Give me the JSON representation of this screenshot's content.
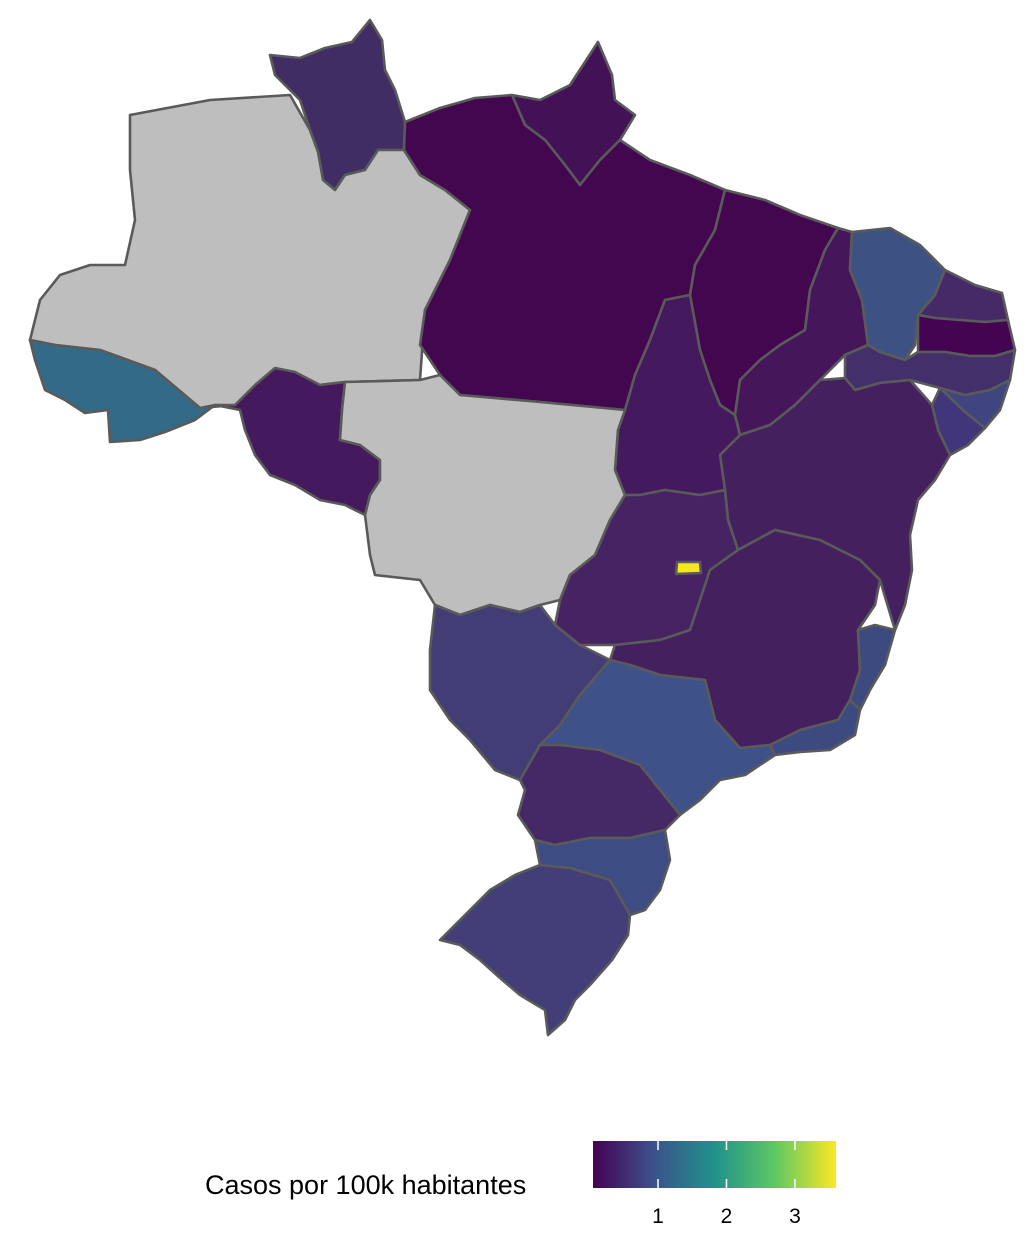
{
  "map": {
    "regions": [
      {
        "id": "RR",
        "value": 0.6,
        "fill": "#3f2d63"
      },
      {
        "id": "AP",
        "value": 0.35,
        "fill": "#431256"
      },
      {
        "id": "AM",
        "value": null,
        "fill": "#bebebe"
      },
      {
        "id": "PA",
        "value": 0.1,
        "fill": "#43074f"
      },
      {
        "id": "MA",
        "value": 0.1,
        "fill": "#43074f"
      },
      {
        "id": "PI",
        "value": 0.3,
        "fill": "#45165a"
      },
      {
        "id": "CE",
        "value": 0.95,
        "fill": "#3d5283"
      },
      {
        "id": "RN",
        "value": 0.4,
        "fill": "#462a67"
      },
      {
        "id": "PB",
        "value": 0.05,
        "fill": "#440451"
      },
      {
        "id": "PE",
        "value": 0.5,
        "fill": "#43306b"
      },
      {
        "id": "AL",
        "value": 0.8,
        "fill": "#3e4580"
      },
      {
        "id": "SE",
        "value": 0.7,
        "fill": "#41367a"
      },
      {
        "id": "BA",
        "value": 0.35,
        "fill": "#45205f"
      },
      {
        "id": "TO",
        "value": 0.3,
        "fill": "#45195d"
      },
      {
        "id": "AC",
        "value": 1.45,
        "fill": "#336a88"
      },
      {
        "id": "RO",
        "value": 0.3,
        "fill": "#45195d"
      },
      {
        "id": "MT",
        "value": null,
        "fill": "#bebebe"
      },
      {
        "id": "MS",
        "value": 0.75,
        "fill": "#433d76"
      },
      {
        "id": "GO",
        "value": 0.4,
        "fill": "#462363"
      },
      {
        "id": "DF",
        "value": 3.6,
        "fill": "#f6e620"
      },
      {
        "id": "MG",
        "value": 0.35,
        "fill": "#44205f"
      },
      {
        "id": "ES",
        "value": 0.85,
        "fill": "#3d4a80"
      },
      {
        "id": "RJ",
        "value": 0.85,
        "fill": "#3d4a80"
      },
      {
        "id": "SP",
        "value": 0.9,
        "fill": "#3e5188"
      },
      {
        "id": "PR",
        "value": 0.45,
        "fill": "#452866"
      },
      {
        "id": "SC",
        "value": 0.85,
        "fill": "#3d4c82"
      },
      {
        "id": "RS",
        "value": 0.7,
        "fill": "#433d78"
      }
    ]
  },
  "legend": {
    "title": "Casos por 100k habitantes",
    "ticks": [
      "1",
      "2",
      "3"
    ],
    "tick_values": [
      1,
      2,
      3
    ],
    "min": 0.05,
    "max": 3.6,
    "colors": [
      "#440154",
      "#3b528b",
      "#21918c",
      "#5ec962",
      "#fde725"
    ]
  }
}
